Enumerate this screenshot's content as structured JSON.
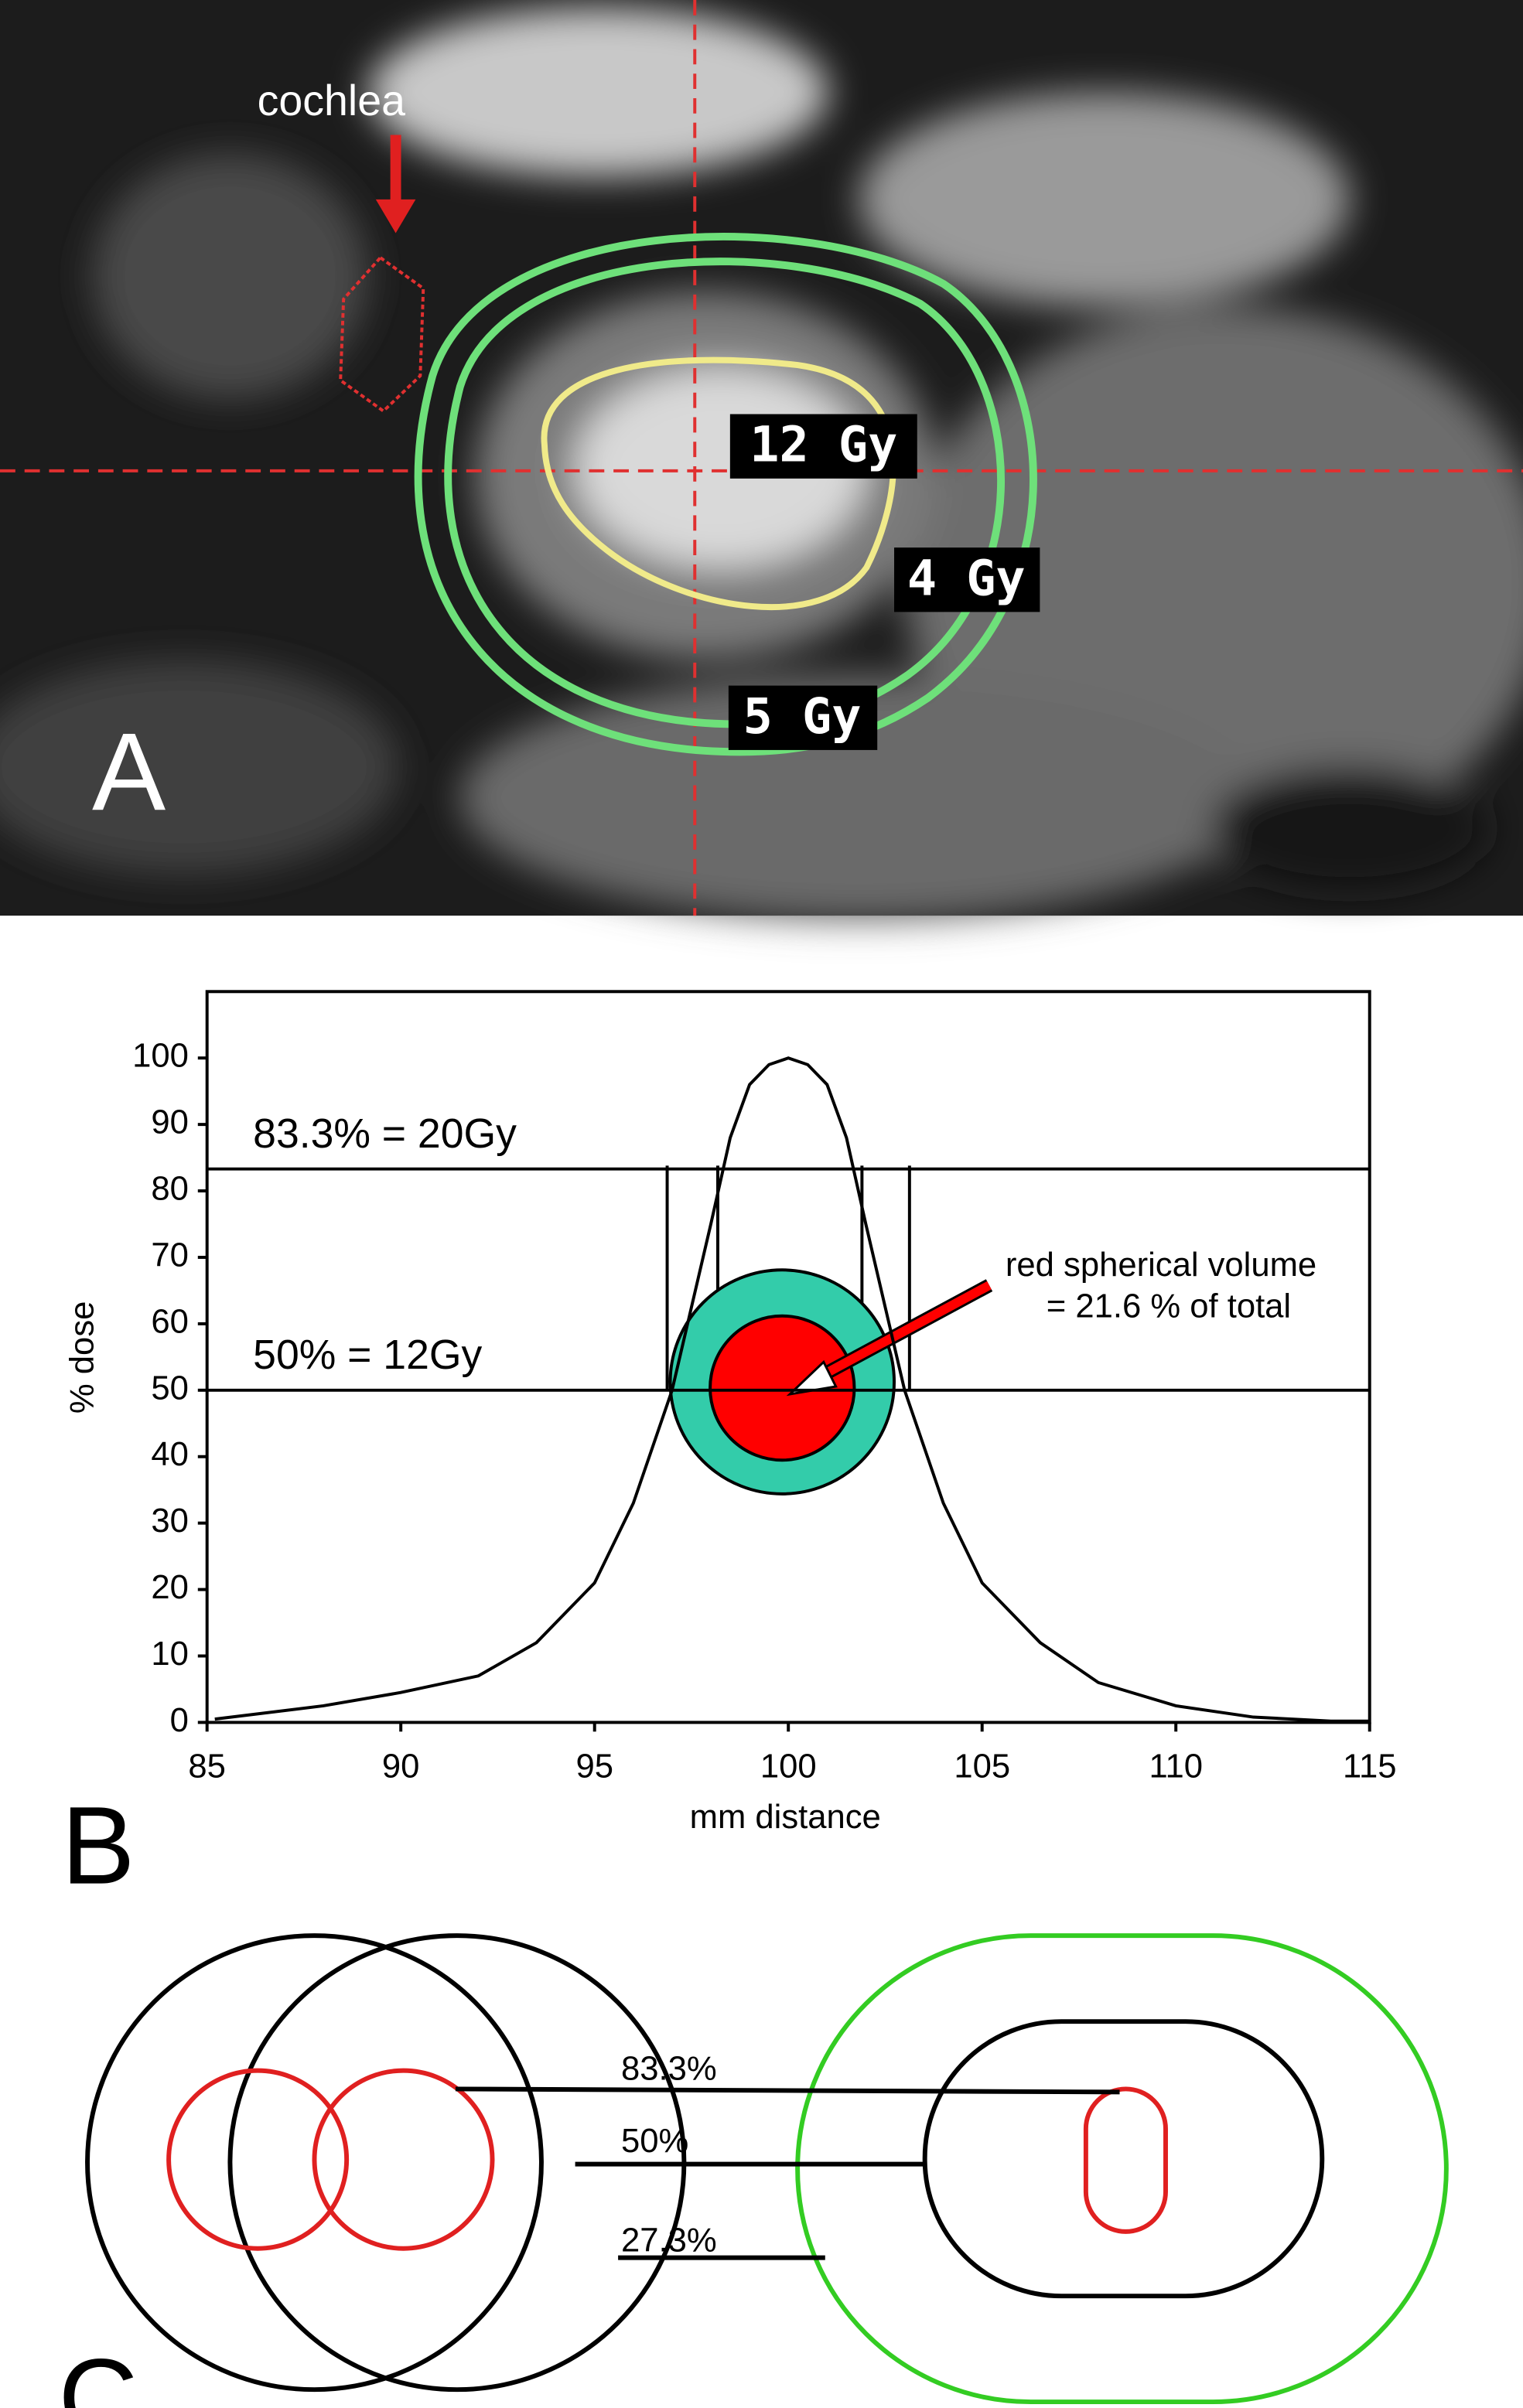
{
  "panel_a": {
    "label": "A",
    "annotation": "cochlea",
    "isodose_labels": [
      "12 Gy",
      "4 Gy",
      "5 Gy"
    ]
  },
  "chart_data": {
    "type": "line",
    "label": "B",
    "xlabel": "mm distance",
    "ylabel": "% dose",
    "x": [
      85.2,
      88,
      90,
      92,
      93.5,
      95,
      96,
      97,
      98,
      98.5,
      99,
      99.5,
      100,
      100.5,
      101,
      101.5,
      102,
      103,
      104,
      105,
      106.5,
      108,
      110,
      112,
      114,
      115
    ],
    "values": [
      0.5,
      2.5,
      4.5,
      7,
      12,
      21,
      33,
      50,
      75,
      88,
      96,
      99,
      100,
      99,
      96,
      88,
      75,
      50,
      33,
      21,
      12,
      6,
      2.5,
      0.8,
      0.2,
      0.2
    ],
    "color": "#000000",
    "xlim": [
      85,
      115
    ],
    "xticks": [
      85,
      90,
      95,
      100,
      105,
      110,
      115
    ],
    "ylim": [
      0,
      110
    ],
    "yticks": [
      0,
      10,
      20,
      30,
      40,
      50,
      60,
      70,
      80,
      90,
      100
    ],
    "reference_lines": [
      {
        "value": 83.3,
        "label": "83.3% = 20Gy"
      },
      {
        "value": 50,
        "label": "50% = 12Gy"
      }
    ],
    "annotation": [
      "red spherical volume",
      "= 21.6 % of total"
    ]
  },
  "panel_c": {
    "label": "C",
    "levels": [
      "83.3%",
      "50%",
      "27.3%"
    ]
  }
}
